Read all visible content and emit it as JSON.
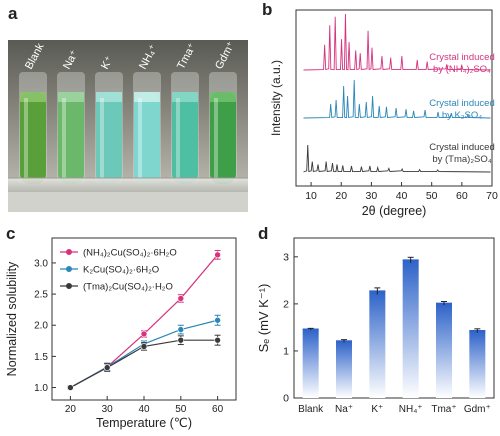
{
  "panel_a": {
    "letter": "a",
    "tubes": [
      {
        "label": "Blank",
        "color": "#5aa03a",
        "top": "#8bc46a"
      },
      {
        "label": "Na⁺",
        "color": "#6cb86a",
        "top": "#9fd5a0"
      },
      {
        "label": "K⁺",
        "color": "#6cc8b8",
        "top": "#a6e2da"
      },
      {
        "label": "NH₄⁺",
        "color": "#7fd6cf",
        "top": "#c8efe8"
      },
      {
        "label": "Tma⁺",
        "color": "#4fbfa4",
        "top": "#86d8c8"
      },
      {
        "label": "Gdm⁺",
        "color": "#3f9e48",
        "top": "#6fbf6c"
      }
    ]
  },
  "panel_b": {
    "letter": "b",
    "chart_data": {
      "type": "line",
      "xlabel": "2θ (degree)",
      "ylabel": "Intensity (a.u.)",
      "xlim": [
        5,
        70
      ],
      "xticks": [
        10,
        20,
        30,
        40,
        50,
        60,
        70
      ],
      "series": [
        {
          "name": "Crystal induced by (NH₄)₂SO₄",
          "name_line1": "Crystal induced",
          "name_line2": "by (NH₄)₂SO₄",
          "color": "#d6337f",
          "peaks": [
            [
              14.5,
              0.45
            ],
            [
              16.2,
              0.8
            ],
            [
              18.0,
              0.95
            ],
            [
              20.1,
              0.55
            ],
            [
              21.4,
              1.0
            ],
            [
              22.6,
              0.5
            ],
            [
              24.8,
              0.35
            ],
            [
              26.3,
              0.3
            ],
            [
              28.9,
              0.7
            ],
            [
              30.2,
              0.4
            ],
            [
              33.5,
              0.25
            ],
            [
              36.4,
              0.22
            ],
            [
              40.1,
              0.25
            ],
            [
              45.2,
              0.18
            ],
            [
              48.5,
              0.15
            ],
            [
              55.0,
              0.1
            ],
            [
              60.0,
              0.08
            ]
          ]
        },
        {
          "name": "Crystal induced by K₂SO₄",
          "name_line1": "Crystal induced",
          "name_line2": "by K₂SO₄",
          "color": "#2b87b8",
          "peaks": [
            [
              16.5,
              0.35
            ],
            [
              18.3,
              0.45
            ],
            [
              20.8,
              0.8
            ],
            [
              22.1,
              0.55
            ],
            [
              24.3,
              0.95
            ],
            [
              26.0,
              0.35
            ],
            [
              28.3,
              0.4
            ],
            [
              30.4,
              0.55
            ],
            [
              32.6,
              0.3
            ],
            [
              35.0,
              0.28
            ],
            [
              38.2,
              0.25
            ],
            [
              41.5,
              0.22
            ],
            [
              44.0,
              0.18
            ],
            [
              47.8,
              0.2
            ],
            [
              52.1,
              0.15
            ],
            [
              56.5,
              0.12
            ],
            [
              62.0,
              0.08
            ]
          ]
        },
        {
          "name": "Crystal induced by (Tma)₂SO₄",
          "name_line1": "Crystal induced",
          "name_line2": "by (Tma)₂SO₄",
          "color": "#3a3a3a",
          "peaks": [
            [
              8.9,
              0.9
            ],
            [
              10.4,
              0.35
            ],
            [
              12.3,
              0.25
            ],
            [
              15.0,
              0.35
            ],
            [
              17.1,
              0.3
            ],
            [
              18.6,
              0.25
            ],
            [
              20.5,
              0.22
            ],
            [
              23.4,
              0.2
            ],
            [
              26.7,
              0.18
            ],
            [
              29.5,
              0.2
            ],
            [
              32.1,
              0.15
            ],
            [
              35.8,
              0.12
            ],
            [
              40.2,
              0.1
            ],
            [
              46.0,
              0.08
            ],
            [
              52.0,
              0.07
            ]
          ]
        }
      ]
    }
  },
  "panel_c": {
    "letter": "c",
    "chart_data": {
      "type": "line",
      "xlabel": "Temperature (℃)",
      "ylabel": "Normalized solubility",
      "xlim": [
        15,
        65
      ],
      "ylim": [
        0.8,
        3.4
      ],
      "xticks": [
        20,
        30,
        40,
        50,
        60
      ],
      "yticks": [
        1.0,
        1.5,
        2.0,
        2.5,
        3.0
      ],
      "x": [
        20,
        30,
        40,
        50,
        60
      ],
      "series": [
        {
          "name": "(NH₄)₂Cu(SO₄)₂·6H₂O",
          "color": "#d6337f",
          "values": [
            1.0,
            1.33,
            1.86,
            2.43,
            3.13
          ],
          "err": [
            0.02,
            0.06,
            0.05,
            0.06,
            0.07
          ]
        },
        {
          "name": "K₂Cu(SO₄)₂·6H₂O",
          "color": "#2b87b8",
          "values": [
            1.0,
            1.33,
            1.7,
            1.93,
            2.08
          ],
          "err": [
            0.02,
            0.06,
            0.05,
            0.07,
            0.08
          ]
        },
        {
          "name": "(Tma)₂Cu(SO₄)₂·H₂O",
          "color": "#3a3a3a",
          "values": [
            1.0,
            1.32,
            1.66,
            1.76,
            1.76
          ],
          "err": [
            0.02,
            0.06,
            0.06,
            0.07,
            0.08
          ]
        }
      ]
    }
  },
  "panel_d": {
    "letter": "d",
    "chart_data": {
      "type": "bar",
      "ylabel": "Sₑ (mV K⁻¹)",
      "ylim": [
        0,
        3.4
      ],
      "yticks": [
        0,
        1,
        2,
        3
      ],
      "categories": [
        "Blank",
        "Na⁺",
        "K⁺",
        "NH₄⁺",
        "Tma⁺",
        "Gdm⁺"
      ],
      "values": [
        1.46,
        1.21,
        2.27,
        2.93,
        2.01,
        1.43
      ],
      "err": [
        0.02,
        0.03,
        0.07,
        0.06,
        0.04,
        0.04
      ],
      "color": "#2e63c9"
    }
  }
}
